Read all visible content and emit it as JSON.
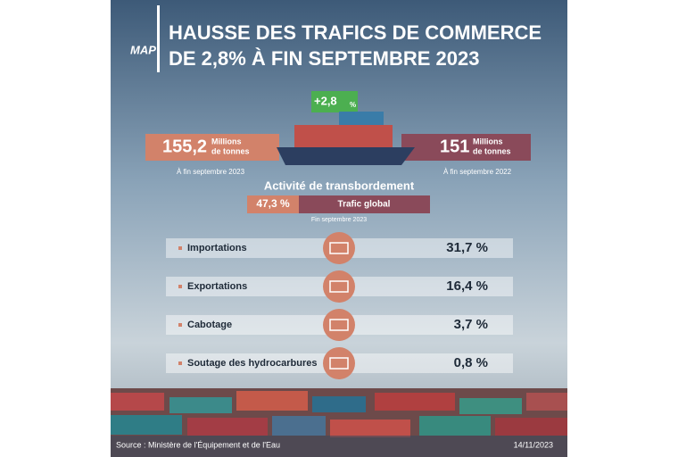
{
  "header": {
    "logo": "MAP",
    "title_lines": [
      "HAUSSE DES TRAFICS DE COMMERCE",
      "DE 2,8% À FIN SEPTEMBRE 2023"
    ]
  },
  "badge": {
    "value": "+2,8",
    "unit": "%"
  },
  "current": {
    "value": "155,2",
    "unit_lines": [
      "Millions",
      "de tonnes"
    ],
    "period": "À fin septembre 2023"
  },
  "previous": {
    "value": "151",
    "unit_lines": [
      "Millions",
      "de tonnes"
    ],
    "period": "À fin septembre 2022"
  },
  "transshipment": {
    "title": "Activité de transbordement",
    "value": "47,3 %",
    "label": "Trafic global",
    "period": "Fin septembre 2023"
  },
  "rows": [
    {
      "label": "Importations",
      "value": "31,7 %"
    },
    {
      "label": "Exportations",
      "value": "16,4 %"
    },
    {
      "label": "Cabotage",
      "value": "3,7 %"
    },
    {
      "label": "Soutage des hydrocarbures",
      "value": "0,8 %"
    }
  ],
  "footer": {
    "source": "Source : Ministère de l'Équipement et de l'Eau",
    "date": "14/11/2023"
  }
}
